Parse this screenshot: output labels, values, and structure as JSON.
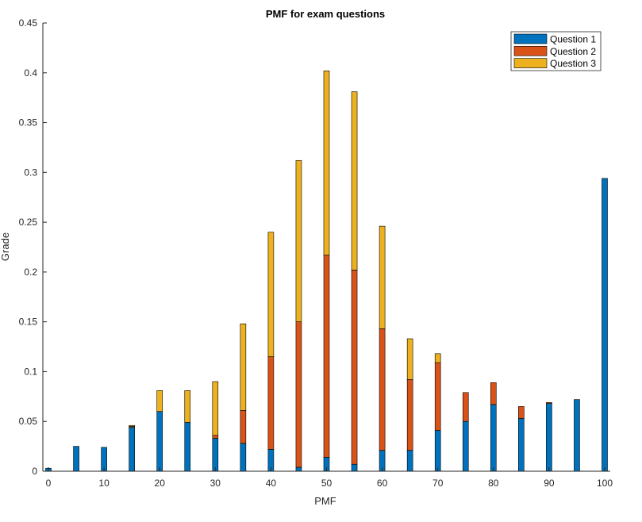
{
  "chart_data": {
    "type": "bar",
    "stacked": true,
    "title": "PMF for exam questions",
    "xlabel": "PMF",
    "ylabel": "Grade",
    "xlim": [
      -1,
      101
    ],
    "ylim": [
      0,
      0.45
    ],
    "xticks": [
      0,
      10,
      20,
      30,
      40,
      50,
      60,
      70,
      80,
      90,
      100
    ],
    "yticks": [
      0,
      0.05,
      0.1,
      0.15,
      0.2,
      0.25,
      0.3,
      0.35,
      0.4,
      0.45
    ],
    "grid": false,
    "legend_position": "top-right",
    "x": [
      0,
      5,
      10,
      15,
      20,
      25,
      30,
      35,
      40,
      45,
      50,
      55,
      60,
      65,
      70,
      75,
      80,
      85,
      90,
      95,
      100
    ],
    "series": [
      {
        "name": "Question 1",
        "color": "#0072BD",
        "values": [
          0.003,
          0.025,
          0.024,
          0.044,
          0.06,
          0.049,
          0.033,
          0.028,
          0.022,
          0.004,
          0.014,
          0.007,
          0.021,
          0.021,
          0.041,
          0.05,
          0.067,
          0.053,
          0.068,
          0.072,
          0.294
        ]
      },
      {
        "name": "Question 2",
        "color": "#D95319",
        "values": [
          0,
          0,
          0,
          0.001,
          0,
          0,
          0.003,
          0.033,
          0.093,
          0.146,
          0.203,
          0.195,
          0.122,
          0.071,
          0.068,
          0.029,
          0.022,
          0.012,
          0.001,
          0,
          0
        ]
      },
      {
        "name": "Question 3",
        "color": "#EDB120",
        "values": [
          0,
          0,
          0,
          0.001,
          0.021,
          0.032,
          0.054,
          0.087,
          0.125,
          0.162,
          0.185,
          0.179,
          0.103,
          0.041,
          0.009,
          0,
          0,
          0,
          0,
          0,
          0
        ]
      }
    ]
  }
}
